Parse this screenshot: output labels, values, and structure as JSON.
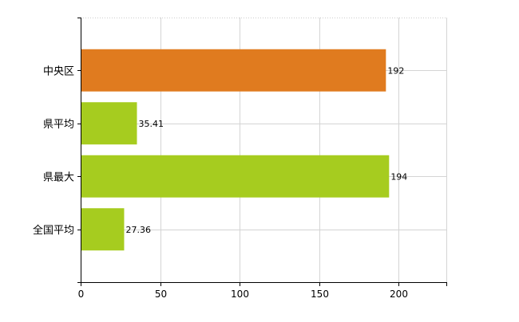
{
  "chart_data": {
    "type": "bar",
    "orientation": "horizontal",
    "categories": [
      "中央区",
      "県平均",
      "県最大",
      "全国平均"
    ],
    "values": [
      192,
      35.41,
      194,
      27.36
    ],
    "value_labels": [
      "192",
      "35.41",
      "194",
      "27.36"
    ],
    "bar_colors": [
      "#e07b1f",
      "#a6cc1f",
      "#a6cc1f",
      "#a6cc1f"
    ],
    "highlight_color": "#e07b1f",
    "default_color": "#a6cc1f",
    "xlim": [
      0,
      230
    ],
    "x_ticks": [
      0,
      50,
      100,
      150,
      200
    ],
    "x_tick_labels": [
      "0",
      "50",
      "100",
      "150",
      "200"
    ],
    "grid": true,
    "title": "",
    "xlabel": "",
    "ylabel": ""
  }
}
